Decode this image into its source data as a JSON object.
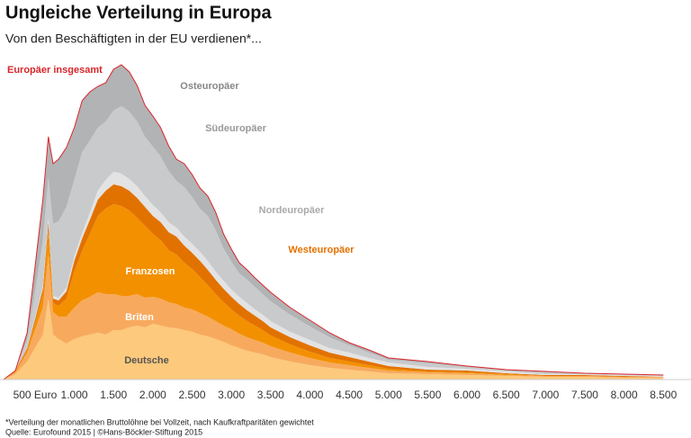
{
  "chart_data": {
    "type": "stacked_area",
    "title": "Ungleiche Verteilung in Europa",
    "subtitle": "Von den Beschäftigten in der EU verdienen*...",
    "note": "*Verteilung der monatlichen Bruttolöhne bei Vollzeit, nach Kaufkraftparitäten gewichtet",
    "source": "Quelle: Eurofound 2015 | ©Hans-Böckler-Stiftung 2015",
    "x": [
      100,
      250,
      400,
      500,
      600,
      670,
      730,
      800,
      900,
      1000,
      1100,
      1200,
      1300,
      1400,
      1500,
      1600,
      1700,
      1800,
      1900,
      2000,
      2100,
      2200,
      2300,
      2400,
      2500,
      2600,
      2700,
      2800,
      2900,
      3000,
      3100,
      3200,
      3300,
      3400,
      3500,
      3750,
      4000,
      4250,
      4500,
      4750,
      5000,
      5500,
      6000,
      6500,
      7000,
      7500,
      8000,
      8500
    ],
    "xlim": [
      100,
      8600
    ],
    "xticks": [
      {
        "value": 500,
        "label": "500 Euro"
      },
      {
        "value": 1000,
        "label": "1.000"
      },
      {
        "value": 1500,
        "label": "1.500"
      },
      {
        "value": 2000,
        "label": "2.000"
      },
      {
        "value": 2500,
        "label": "2.500"
      },
      {
        "value": 3000,
        "label": "3.000"
      },
      {
        "value": 3500,
        "label": "3.500"
      },
      {
        "value": 4000,
        "label": "4.000"
      },
      {
        "value": 4500,
        "label": "4.500"
      },
      {
        "value": 5000,
        "label": "5.000"
      },
      {
        "value": 5500,
        "label": "5.500"
      },
      {
        "value": 6000,
        "label": "6.000"
      },
      {
        "value": 6500,
        "label": "6.500"
      },
      {
        "value": 7000,
        "label": "7.000"
      },
      {
        "value": 7500,
        "label": "7.500"
      },
      {
        "value": 8000,
        "label": "8.000"
      },
      {
        "value": 8500,
        "label": "8.500"
      }
    ],
    "ylim": [
      0,
      360
    ],
    "series": [
      {
        "name": "Deutsche",
        "color": "#fdc97c",
        "values": [
          0,
          6,
          20,
          35,
          50,
          90,
          50,
          45,
          40,
          45,
          48,
          50,
          52,
          50,
          55,
          55,
          58,
          60,
          58,
          62,
          60,
          58,
          57,
          55,
          53,
          50,
          48,
          45,
          42,
          38,
          35,
          32,
          30,
          28,
          25,
          20,
          16,
          13,
          11,
          9,
          7,
          6,
          5,
          4,
          3,
          3,
          2,
          2
        ]
      },
      {
        "name": "Briten",
        "color": "#f7aa5e",
        "values": [
          0,
          2,
          10,
          20,
          30,
          50,
          25,
          25,
          30,
          35,
          40,
          42,
          45,
          45,
          40,
          38,
          35,
          35,
          33,
          30,
          30,
          28,
          27,
          25,
          25,
          24,
          22,
          20,
          18,
          18,
          16,
          15,
          14,
          13,
          12,
          10,
          8,
          6,
          5,
          4,
          3,
          2,
          2,
          1,
          1,
          1,
          1,
          1
        ]
      },
      {
        "name": "Franzosen",
        "color": "#f39000",
        "values": [
          0,
          1,
          3,
          8,
          15,
          25,
          10,
          12,
          20,
          40,
          55,
          70,
          85,
          95,
          100,
          100,
          95,
          85,
          80,
          70,
          65,
          58,
          55,
          50,
          45,
          40,
          35,
          30,
          26,
          22,
          20,
          18,
          16,
          14,
          12,
          9,
          7,
          5,
          4,
          3,
          2,
          1,
          1,
          1,
          0,
          0,
          0,
          0
        ]
      },
      {
        "name": "Westeuropäer",
        "color": "#e27200",
        "values": [
          0,
          1,
          2,
          4,
          6,
          10,
          5,
          6,
          8,
          12,
          14,
          16,
          18,
          20,
          22,
          22,
          22,
          22,
          21,
          20,
          20,
          20,
          20,
          19,
          18,
          18,
          17,
          16,
          15,
          14,
          13,
          12,
          11,
          10,
          9,
          8,
          7,
          6,
          5,
          4,
          3,
          2,
          2,
          1,
          1,
          1,
          1,
          0
        ]
      },
      {
        "name": "Nordeuropäer",
        "color": "#e3e3e3",
        "values": [
          0,
          0,
          1,
          2,
          3,
          5,
          3,
          3,
          4,
          5,
          6,
          8,
          10,
          12,
          14,
          14,
          13,
          13,
          12,
          12,
          11,
          11,
          10,
          10,
          10,
          10,
          10,
          9,
          9,
          8,
          8,
          8,
          7,
          7,
          7,
          6,
          6,
          5,
          5,
          4,
          4,
          3,
          2,
          2,
          1,
          1,
          1,
          1
        ]
      },
      {
        "name": "Südeuropäer",
        "color": "#c9cacc",
        "values": [
          0,
          0,
          8,
          28,
          50,
          45,
          80,
          85,
          90,
          85,
          90,
          80,
          70,
          65,
          68,
          75,
          75,
          72,
          66,
          65,
          62,
          57,
          52,
          55,
          52,
          48,
          50,
          46,
          36,
          31,
          26,
          26,
          25,
          23,
          22,
          19,
          15,
          12,
          8,
          6,
          3,
          4,
          2,
          1,
          2,
          1,
          1,
          1
        ]
      },
      {
        "name": "Osteuropäer",
        "color": "#b2b3b5",
        "values": [
          0,
          0,
          8,
          28,
          46,
          45,
          67,
          69,
          66,
          58,
          57,
          54,
          46,
          43,
          46,
          46,
          44,
          40,
          35,
          34,
          32,
          28,
          24,
          26,
          25,
          23,
          22,
          20,
          16,
          14,
          12,
          11,
          10,
          10,
          10,
          8,
          7,
          5,
          3,
          3,
          2,
          2,
          1,
          1,
          1,
          0,
          0,
          0
        ]
      }
    ],
    "total": {
      "name": "Europäer insgesamt",
      "color": "#d7262b",
      "values": [
        0,
        10,
        52,
        125,
        200,
        270,
        240,
        245,
        258,
        280,
        310,
        320,
        326,
        330,
        345,
        350,
        342,
        327,
        305,
        293,
        280,
        260,
        245,
        240,
        228,
        213,
        204,
        186,
        162,
        145,
        130,
        122,
        113,
        105,
        97,
        80,
        66,
        52,
        41,
        33,
        24,
        20,
        15,
        11,
        9,
        7,
        6,
        5
      ]
    }
  }
}
